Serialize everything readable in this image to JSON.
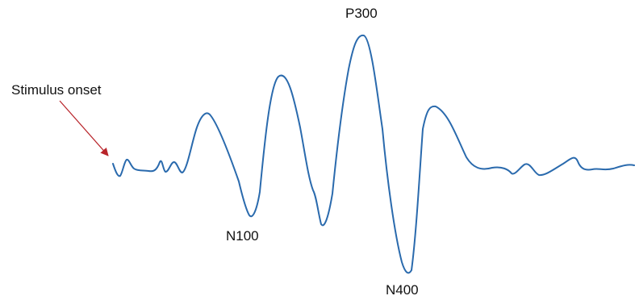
{
  "diagram": {
    "labels": {
      "stimulus": "Stimulus onset",
      "n100": "N100",
      "p300": "P300",
      "n400": "N400"
    },
    "colors": {
      "waveform": "#2a6aad",
      "arrow": "#b8242a",
      "text": "#111111"
    }
  }
}
